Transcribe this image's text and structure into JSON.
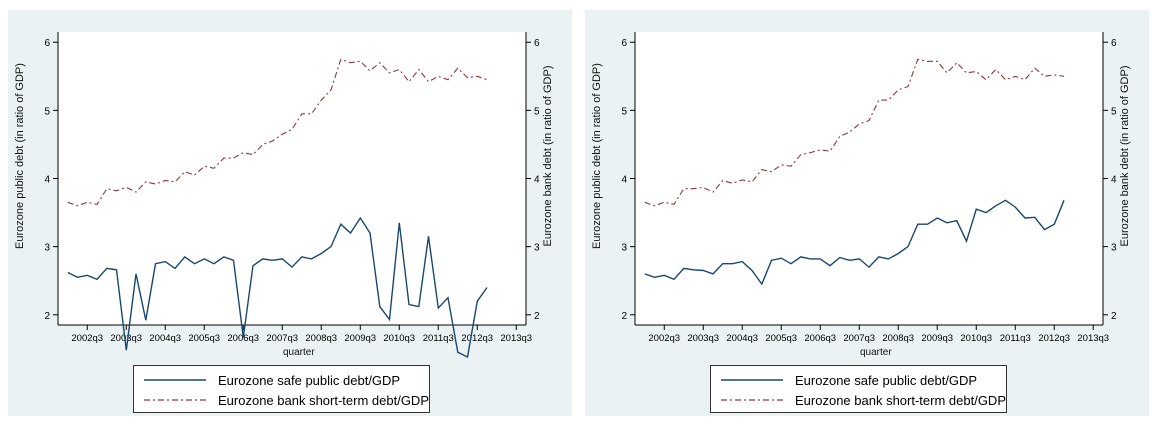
{
  "chart_data": [
    {
      "type": "line",
      "xlabel": "quarter",
      "ylabel_left": "Eurozone public debt (in ratio of GDP)",
      "ylabel_right": "Eurozone bank debt (in ratio of GDP)",
      "x_ticks": [
        "2002q3",
        "2003q3",
        "2004q3",
        "2005q3",
        "2006q3",
        "2007q3",
        "2008q3",
        "2009q3",
        "2010q3",
        "2011q3",
        "2012q3",
        "2013q3"
      ],
      "y_ticks": [
        2,
        3,
        4,
        5,
        6
      ],
      "ylim": [
        1.85,
        6.15
      ],
      "x_range": [
        2001.75,
        2013.75
      ],
      "series": [
        {
          "name": "Eurozone safe public debt/GDP",
          "color": "#1a476f",
          "style": "solid",
          "x": [
            "2002q1",
            "2002q2",
            "2002q3",
            "2002q4",
            "2003q1",
            "2003q2",
            "2003q3",
            "2003q4",
            "2004q1",
            "2004q2",
            "2004q3",
            "2004q4",
            "2005q1",
            "2005q2",
            "2005q3",
            "2005q4",
            "2006q1",
            "2006q2",
            "2006q3",
            "2006q4",
            "2007q1",
            "2007q2",
            "2007q3",
            "2007q4",
            "2008q1",
            "2008q2",
            "2008q3",
            "2008q4",
            "2009q1",
            "2009q2",
            "2009q3",
            "2009q4",
            "2010q1",
            "2010q2",
            "2010q3",
            "2010q4",
            "2011q1",
            "2011q2",
            "2011q3",
            "2011q4",
            "2012q1",
            "2012q2",
            "2012q3",
            "2012q4"
          ],
          "values": [
            2.62,
            2.55,
            2.58,
            2.52,
            2.68,
            2.66,
            1.48,
            2.6,
            1.92,
            2.75,
            2.78,
            2.68,
            2.85,
            2.75,
            2.82,
            2.75,
            2.85,
            2.8,
            1.67,
            2.72,
            2.82,
            2.8,
            2.82,
            2.7,
            2.85,
            2.82,
            2.9,
            3.0,
            3.33,
            3.2,
            3.42,
            3.2,
            2.12,
            1.93,
            3.35,
            2.15,
            2.12,
            3.15,
            2.1,
            2.25,
            1.45,
            1.38,
            2.2,
            2.4
          ]
        },
        {
          "name": "Eurozone bank short-term debt/GDP",
          "color": "#90353b",
          "style": "dash-dot",
          "x": [
            "2002q1",
            "2002q2",
            "2002q3",
            "2002q4",
            "2003q1",
            "2003q2",
            "2003q3",
            "2003q4",
            "2004q1",
            "2004q2",
            "2004q3",
            "2004q4",
            "2005q1",
            "2005q2",
            "2005q3",
            "2005q4",
            "2006q1",
            "2006q2",
            "2006q3",
            "2006q4",
            "2007q1",
            "2007q2",
            "2007q3",
            "2007q4",
            "2008q1",
            "2008q2",
            "2008q3",
            "2008q4",
            "2009q1",
            "2009q2",
            "2009q3",
            "2009q4",
            "2010q1",
            "2010q2",
            "2010q3",
            "2010q4",
            "2011q1",
            "2011q2",
            "2011q3",
            "2011q4",
            "2012q1",
            "2012q2",
            "2012q3",
            "2012q4"
          ],
          "values": [
            3.65,
            3.6,
            3.65,
            3.62,
            3.85,
            3.82,
            3.87,
            3.8,
            3.95,
            3.92,
            3.97,
            3.95,
            4.1,
            4.05,
            4.18,
            4.15,
            4.3,
            4.3,
            4.38,
            4.35,
            4.5,
            4.55,
            4.65,
            4.72,
            4.95,
            4.95,
            5.15,
            5.3,
            5.75,
            5.7,
            5.72,
            5.58,
            5.7,
            5.55,
            5.6,
            5.42,
            5.6,
            5.42,
            5.5,
            5.45,
            5.62,
            5.48,
            5.5,
            5.45
          ]
        }
      ],
      "legend": "bottom"
    },
    {
      "type": "line",
      "xlabel": "quarter",
      "ylabel_left": "Eurozone public debt (in ratio of GDP)",
      "ylabel_right": "Eurozone bank debt (in ratio of GDP)",
      "x_ticks": [
        "2002q3",
        "2003q3",
        "2004q3",
        "2005q3",
        "2006q3",
        "2007q3",
        "2008q3",
        "2009q3",
        "2010q3",
        "2011q3",
        "2012q3",
        "2013q3"
      ],
      "y_ticks": [
        2,
        3,
        4,
        5,
        6
      ],
      "ylim": [
        1.85,
        6.15
      ],
      "x_range": [
        2001.75,
        2013.75
      ],
      "series": [
        {
          "name": "Eurozone safe public debt/GDP",
          "color": "#1a476f",
          "style": "solid",
          "x": [
            "2002q1",
            "2002q2",
            "2002q3",
            "2002q4",
            "2003q1",
            "2003q2",
            "2003q3",
            "2003q4",
            "2004q1",
            "2004q2",
            "2004q3",
            "2004q4",
            "2005q1",
            "2005q2",
            "2005q3",
            "2005q4",
            "2006q1",
            "2006q2",
            "2006q3",
            "2006q4",
            "2007q1",
            "2007q2",
            "2007q3",
            "2007q4",
            "2008q1",
            "2008q2",
            "2008q3",
            "2008q4",
            "2009q1",
            "2009q2",
            "2009q3",
            "2009q4",
            "2010q1",
            "2010q2",
            "2010q3",
            "2010q4",
            "2011q1",
            "2011q2",
            "2011q3",
            "2011q4",
            "2012q1",
            "2012q2",
            "2012q3",
            "2012q4"
          ],
          "values": [
            2.6,
            2.55,
            2.58,
            2.52,
            2.68,
            2.66,
            2.65,
            2.6,
            2.75,
            2.75,
            2.78,
            2.65,
            2.45,
            2.8,
            2.83,
            2.75,
            2.85,
            2.82,
            2.82,
            2.72,
            2.84,
            2.8,
            2.82,
            2.7,
            2.85,
            2.82,
            2.9,
            3.0,
            3.33,
            3.33,
            3.42,
            3.35,
            3.38,
            3.08,
            3.55,
            3.5,
            3.6,
            3.68,
            3.58,
            3.42,
            3.43,
            3.25,
            3.33,
            3.68
          ]
        },
        {
          "name": "Eurozone bank short-term debt/GDP",
          "color": "#90353b",
          "style": "dash-dot",
          "x": [
            "2002q1",
            "2002q2",
            "2002q3",
            "2002q4",
            "2003q1",
            "2003q2",
            "2003q3",
            "2003q4",
            "2004q1",
            "2004q2",
            "2004q3",
            "2004q4",
            "2005q1",
            "2005q2",
            "2005q3",
            "2005q4",
            "2006q1",
            "2006q2",
            "2006q3",
            "2006q4",
            "2007q1",
            "2007q2",
            "2007q3",
            "2007q4",
            "2008q1",
            "2008q2",
            "2008q3",
            "2008q4",
            "2009q1",
            "2009q2",
            "2009q3",
            "2009q4",
            "2010q1",
            "2010q2",
            "2010q3",
            "2010q4",
            "2011q1",
            "2011q2",
            "2011q3",
            "2011q4",
            "2012q1",
            "2012q2",
            "2012q3",
            "2012q4"
          ],
          "values": [
            3.65,
            3.6,
            3.65,
            3.62,
            3.85,
            3.85,
            3.87,
            3.8,
            3.97,
            3.93,
            3.98,
            3.95,
            4.13,
            4.1,
            4.2,
            4.18,
            4.35,
            4.38,
            4.42,
            4.4,
            4.62,
            4.68,
            4.8,
            4.85,
            5.15,
            5.15,
            5.3,
            5.35,
            5.75,
            5.72,
            5.72,
            5.55,
            5.7,
            5.55,
            5.57,
            5.45,
            5.6,
            5.45,
            5.5,
            5.45,
            5.62,
            5.5,
            5.52,
            5.5
          ]
        }
      ],
      "legend": "bottom"
    }
  ]
}
